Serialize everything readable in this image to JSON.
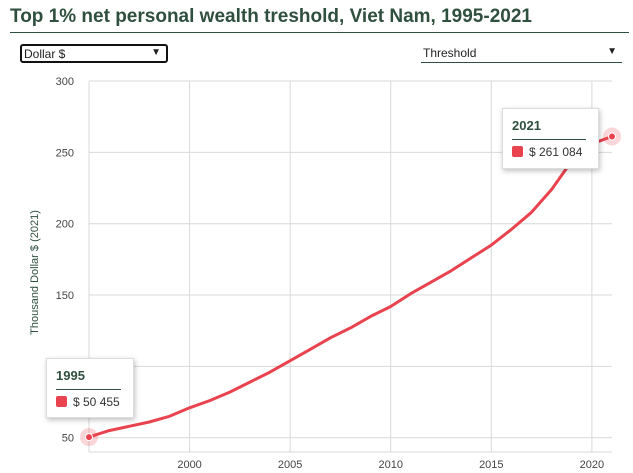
{
  "header": {
    "title": "Top 1% net personal wealth treshold, Viet Nam, 1995-2021"
  },
  "controls": {
    "currency": {
      "value": "Dollar $"
    },
    "indicator": {
      "value": "Threshold"
    }
  },
  "tooltips": [
    {
      "year": "1995",
      "value": "$ 50 455"
    },
    {
      "year": "2021",
      "value": "$ 261 084"
    }
  ],
  "colors": {
    "series": "#e8434e",
    "title": "#2f4f3f",
    "grid": "#d9d9d9"
  },
  "chart_data": {
    "type": "line",
    "ylabel": "Thousand Dollar $ (2021)",
    "xlabel": "",
    "xlim": [
      1995,
      2021
    ],
    "ylim": [
      40,
      300
    ],
    "x_ticks": [
      2000,
      2005,
      2010,
      2015,
      2020
    ],
    "y_ticks": [
      50,
      100,
      150,
      200,
      250,
      300
    ],
    "series": [
      {
        "x": [
          1995,
          1996,
          1997,
          1998,
          1999,
          2000,
          2001,
          2002,
          2003,
          2004,
          2005,
          2006,
          2007,
          2008,
          2009,
          2010,
          2011,
          2012,
          2013,
          2014,
          2015,
          2016,
          2017,
          2018,
          2019,
          2020,
          2021
        ],
        "values": [
          50.455,
          55,
          58,
          61,
          65,
          71,
          76,
          82,
          89,
          96,
          104,
          112,
          120,
          127,
          135,
          142,
          151,
          159,
          167,
          176,
          185,
          196,
          208,
          224,
          244,
          256,
          261.084
        ]
      }
    ]
  }
}
